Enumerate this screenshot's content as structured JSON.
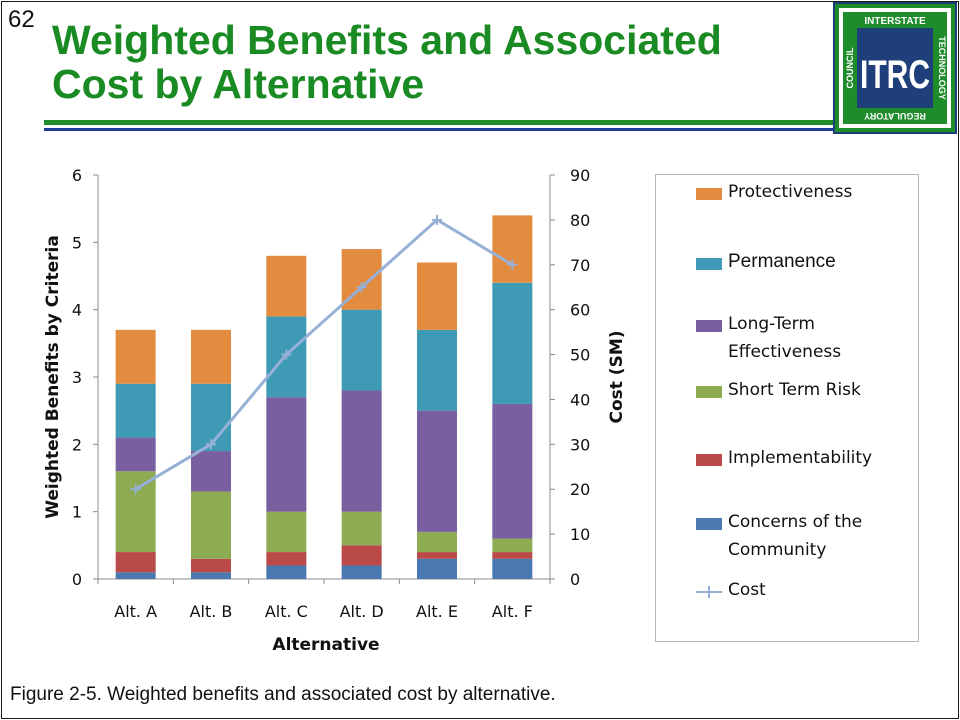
{
  "slide": {
    "number": "62",
    "title": "Weighted Benefits and Associated Cost by Alternative",
    "caption": "Figure 2-5. Weighted benefits and associated cost by alternative."
  },
  "logo": {
    "center_text": "ITRC",
    "top_text": "INTERSTATE",
    "right_text": "TECHNOLOGY",
    "bottom_text": "REGULATORY",
    "left_text": "COUNCIL",
    "colors": {
      "green": "#1e8c2a",
      "navy": "#1f3f7a"
    }
  },
  "chart_data": {
    "type": "bar",
    "stacked": true,
    "categories": [
      "Alt. A",
      "Alt. B",
      "Alt. C",
      "Alt. D",
      "Alt. E",
      "Alt. F"
    ],
    "series": [
      {
        "name": "Concerns of the Community",
        "color": "#4a78b0",
        "values": [
          0.1,
          0.1,
          0.2,
          0.2,
          0.3,
          0.3
        ]
      },
      {
        "name": "Implementability",
        "color": "#b94a48",
        "values": [
          0.3,
          0.2,
          0.2,
          0.3,
          0.1,
          0.1
        ]
      },
      {
        "name": "Short Term Risk",
        "color": "#8cab52",
        "values": [
          1.2,
          1.0,
          0.6,
          0.5,
          0.3,
          0.2
        ]
      },
      {
        "name": "Long-Term Effectiveness",
        "color": "#7a5fa0",
        "values": [
          0.5,
          0.6,
          1.7,
          1.8,
          1.8,
          2.0
        ]
      },
      {
        "name": "Permanence",
        "color": "#3f9ab5",
        "values": [
          0.8,
          1.0,
          1.2,
          1.2,
          1.2,
          1.8
        ]
      },
      {
        "name": "Protectiveness",
        "color": "#e38b3f",
        "values": [
          0.8,
          0.8,
          0.9,
          0.9,
          1.0,
          1.0
        ]
      }
    ],
    "line_series": {
      "name": "Cost",
      "color": "#97b1d6",
      "axis": "right",
      "values": [
        20,
        30,
        50,
        65,
        80,
        70
      ]
    },
    "xlabel": "Alternative",
    "ylabel": "Weighted Benefits by Criteria",
    "y2label": "Cost (SM)",
    "ylim": [
      0,
      6
    ],
    "y2lim": [
      0,
      90
    ],
    "yticks": [
      "0",
      "1",
      "2",
      "3",
      "4",
      "5",
      "6"
    ],
    "y2ticks": [
      "0",
      "10",
      "20",
      "30",
      "40",
      "50",
      "60",
      "70",
      "80",
      "90"
    ],
    "grid": false,
    "legend_placement": "right"
  },
  "legend": {
    "items": [
      {
        "label": "Protectiveness",
        "color": "#e38b3f",
        "kind": "box"
      },
      {
        "label": "Permanence",
        "color": "#3f9ab5",
        "kind": "box"
      },
      {
        "label": "Long-Term Effectiveness",
        "color": "#7a5fa0",
        "kind": "box"
      },
      {
        "label": "Short Term Risk",
        "color": "#8cab52",
        "kind": "box"
      },
      {
        "label": "Implementability",
        "color": "#b94a48",
        "kind": "box"
      },
      {
        "label": "Concerns of the Community",
        "color": "#4a78b0",
        "kind": "box"
      },
      {
        "label": "Cost",
        "color": "#97b1d6",
        "kind": "line"
      }
    ]
  }
}
